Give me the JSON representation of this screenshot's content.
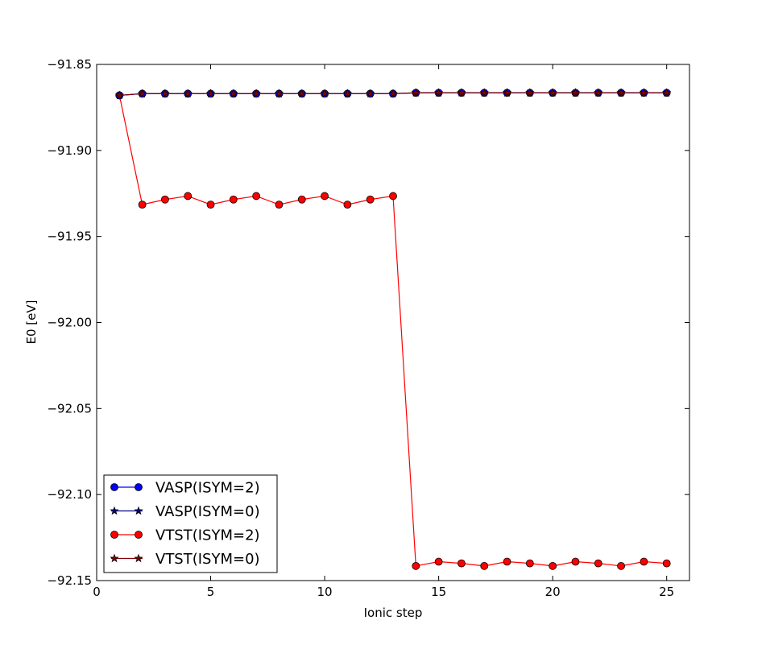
{
  "chart_data": {
    "type": "line",
    "title": "",
    "xlabel": "Ionic step",
    "ylabel": "E0 [eV]",
    "xlim": [
      0,
      26
    ],
    "ylim": [
      -92.15,
      -91.85
    ],
    "xticks": [
      0,
      5,
      10,
      15,
      20,
      25
    ],
    "yticks": [
      -91.85,
      -91.9,
      -91.95,
      -92.0,
      -92.05,
      -92.1,
      -92.15
    ],
    "xtick_labels": [
      "0",
      "5",
      "10",
      "15",
      "20",
      "25"
    ],
    "ytick_labels": [
      "−91.85",
      "−91.90",
      "−91.95",
      "−92.00",
      "−92.05",
      "−92.10",
      "−92.15"
    ],
    "grid": false,
    "legend_position": "lower-left",
    "x": [
      1,
      2,
      3,
      4,
      5,
      6,
      7,
      8,
      9,
      10,
      11,
      12,
      13,
      14,
      15,
      16,
      17,
      18,
      19,
      20,
      21,
      22,
      23,
      24,
      25
    ],
    "series": [
      {
        "name": "VASP(ISYM=2)",
        "color": "#0000ff",
        "marker": "circle",
        "values": [
          -91.868,
          -91.867,
          -91.867,
          -91.867,
          -91.867,
          -91.867,
          -91.867,
          -91.867,
          -91.867,
          -91.867,
          -91.867,
          -91.867,
          -91.867,
          -91.8665,
          -91.8665,
          -91.8665,
          -91.8665,
          -91.8665,
          -91.8665,
          -91.8665,
          -91.8665,
          -91.8665,
          -91.8665,
          -91.8665,
          -91.8665
        ]
      },
      {
        "name": "VASP(ISYM=0)",
        "color": "#000080",
        "marker": "star",
        "values": [
          -91.868,
          -91.867,
          -91.867,
          -91.867,
          -91.867,
          -91.867,
          -91.867,
          -91.867,
          -91.867,
          -91.867,
          -91.867,
          -91.867,
          -91.867,
          -91.8665,
          -91.8665,
          -91.8665,
          -91.8665,
          -91.8665,
          -91.8665,
          -91.8665,
          -91.8665,
          -91.8665,
          -91.8665,
          -91.8665,
          -91.8665
        ]
      },
      {
        "name": "VTST(ISYM=2)",
        "color": "#ff0000",
        "marker": "circle",
        "values": [
          -91.868,
          -91.9315,
          -91.9285,
          -91.9265,
          -91.9315,
          -91.9285,
          -91.9265,
          -91.9315,
          -91.9285,
          -91.9265,
          -91.9315,
          -91.9285,
          -91.9265,
          -92.1415,
          -92.139,
          -92.14,
          -92.1415,
          -92.139,
          -92.14,
          -92.1415,
          -92.139,
          -92.14,
          -92.1415,
          -92.139,
          -92.14
        ]
      },
      {
        "name": "VTST(ISYM=0)",
        "color": "#800000",
        "marker": "star",
        "values": [
          -91.868,
          -91.867,
          -91.867,
          -91.867,
          -91.867,
          -91.867,
          -91.867,
          -91.867,
          -91.867,
          -91.867,
          -91.867,
          -91.867,
          -91.867,
          -91.8665,
          -91.8665,
          -91.8665,
          -91.8665,
          -91.8665,
          -91.8665,
          -91.8665,
          -91.8665,
          -91.8665,
          -91.8665,
          -91.8665,
          -91.8665
        ]
      }
    ]
  }
}
